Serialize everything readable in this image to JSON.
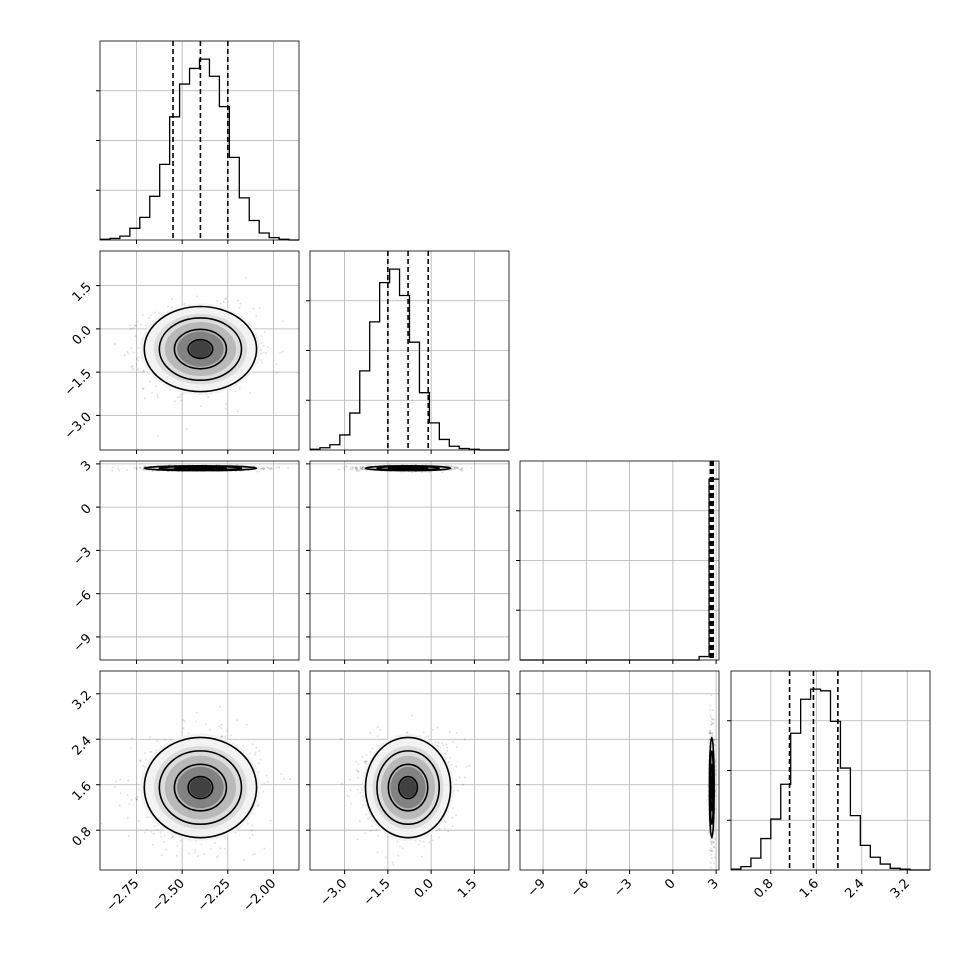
{
  "chart_data": {
    "type": "corner",
    "grid": true,
    "parameters": [
      {
        "id": "p0",
        "range": [
          -2.95,
          -1.86
        ],
        "ticks": [
          -2.75,
          -2.5,
          -2.25,
          -2.0
        ],
        "tick_labels": [
          "−2.75",
          "−2.50",
          "−2.25",
          "−2.00"
        ],
        "quantiles": [
          -2.55,
          -2.4,
          -2.25
        ],
        "hist": {
          "edges_start": -2.95,
          "bin_width": 0.0545,
          "counts": [
            1,
            2,
            5,
            15,
            29,
            56,
            97,
            158,
            200,
            220,
            232,
            210,
            171,
            106,
            54,
            25,
            9,
            3,
            1,
            0
          ]
        }
      },
      {
        "id": "p1",
        "range": [
          -4.2,
          2.7
        ],
        "ticks": [
          -3.0,
          -1.5,
          0.0,
          1.5
        ],
        "tick_labels": [
          "−3.0",
          "−1.5",
          "0.0",
          "1.5"
        ],
        "quantiles": [
          -1.5,
          -0.8,
          -0.1
        ],
        "hist": {
          "edges_start": -4.2,
          "bin_width": 0.345,
          "counts": [
            1,
            3,
            7,
            20,
            49,
            105,
            170,
            222,
            240,
            205,
            143,
            76,
            36,
            14,
            5,
            2,
            1,
            0,
            0,
            0
          ]
        }
      },
      {
        "id": "p2",
        "range": [
          -10.6,
          3.2
        ],
        "ticks": [
          -9,
          -6,
          -3,
          0,
          3
        ],
        "tick_labels": [
          "−9",
          "−6",
          "−3",
          "0",
          "3"
        ],
        "quantiles": [
          2.6,
          2.7,
          2.8
        ],
        "hist": {
          "edges_start": -10.6,
          "bin_width": 0.69,
          "counts": [
            0,
            0,
            0,
            0,
            0,
            0,
            0,
            0,
            0,
            0,
            0,
            0,
            0,
            0,
            0,
            0,
            0,
            0,
            4,
            210
          ]
        }
      },
      {
        "id": "p3",
        "range": [
          0.1,
          3.6
        ],
        "ticks": [
          0.8,
          1.6,
          2.4,
          3.2
        ],
        "tick_labels": [
          "0.8",
          "1.6",
          "2.4",
          "3.2"
        ],
        "quantiles": [
          1.13,
          1.55,
          1.98
        ],
        "hist": {
          "edges_start": 0.1,
          "bin_width": 0.175,
          "counts": [
            1,
            4,
            14,
            37,
            60,
            101,
            161,
            201,
            213,
            211,
            175,
            120,
            64,
            29,
            15,
            7,
            2,
            1,
            0,
            0
          ]
        }
      }
    ],
    "pairs": [
      {
        "row": 1,
        "col": 0,
        "center": [
          -2.4,
          -0.7
        ],
        "sigma": [
          0.15,
          0.72
        ],
        "rho": 0.0
      },
      {
        "row": 2,
        "col": 0,
        "center": [
          -2.4,
          2.7
        ],
        "sigma": [
          0.15,
          0.08
        ],
        "rho": 0.0
      },
      {
        "row": 2,
        "col": 1,
        "center": [
          -0.8,
          2.7
        ],
        "sigma": [
          0.72,
          0.08
        ],
        "rho": 0.0
      },
      {
        "row": 3,
        "col": 0,
        "center": [
          -2.4,
          1.55
        ],
        "sigma": [
          0.15,
          0.43
        ],
        "rho": 0.0
      },
      {
        "row": 3,
        "col": 1,
        "center": [
          -0.8,
          1.55
        ],
        "sigma": [
          0.72,
          0.43
        ],
        "rho": 0.05
      },
      {
        "row": 3,
        "col": 2,
        "center": [
          2.7,
          1.55
        ],
        "sigma": [
          0.08,
          0.43
        ],
        "rho": 0.0
      }
    ]
  }
}
